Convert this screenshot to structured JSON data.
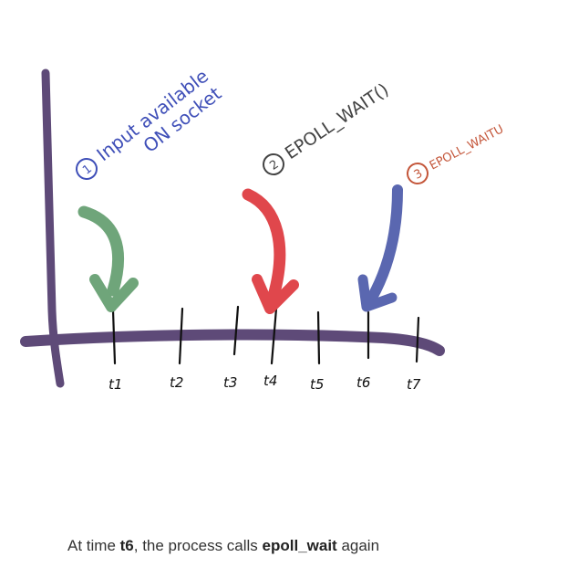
{
  "diagram": {
    "ticks": [
      "t1",
      "t2",
      "t3",
      "t4",
      "t5",
      "t6",
      "t7"
    ],
    "annotations": [
      {
        "number": "1",
        "line1": "Input available",
        "line2": "ON socket",
        "color": "#3f4fb8",
        "arrow_color": "#6fa57a"
      },
      {
        "number": "2",
        "label": "EPOLL_WAIT()",
        "color": "#444444",
        "arrow_color": "#e0474c"
      },
      {
        "number": "3",
        "label": "EPOLL_WAITU",
        "color": "#c4563a",
        "arrow_color": "#5a67b0"
      }
    ],
    "axis_color": "#5e4a78"
  },
  "caption": {
    "prefix": "At time ",
    "time": "t6",
    "middle": ", the process calls ",
    "call": "epoll_wait",
    "suffix": " again"
  }
}
